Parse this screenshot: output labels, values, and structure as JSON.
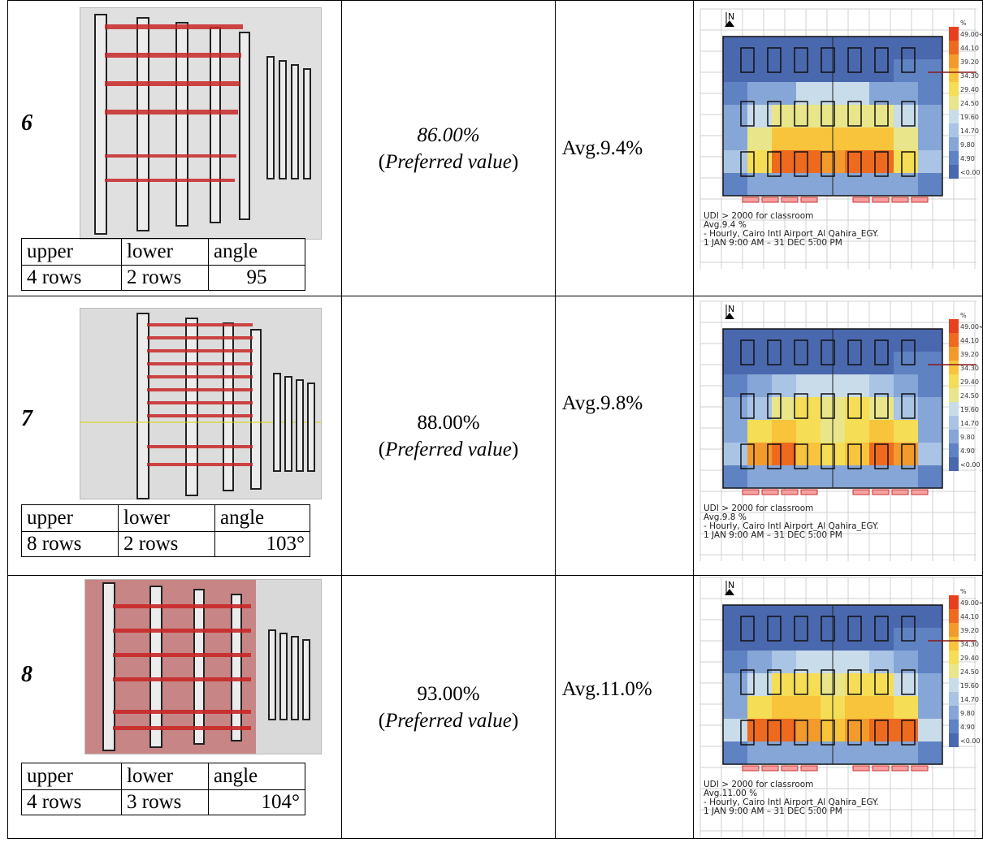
{
  "rows": [
    {
      "num": "6",
      "pct": "86.00%",
      "pct_italic": true,
      "pref": "Preferred value",
      "avg": "Avg.9.4%",
      "params": {
        "h1": "upper",
        "h2": "lower",
        "h3": "angle",
        "v1": "4 rows",
        "v2": "2 rows",
        "v3": "95"
      },
      "map": {
        "north": "N",
        "caption1": "UDI > 2000 for classroom",
        "caption2": "Avg.9.4 %",
        "caption3": " - Hourly, Cairo Intl Airport_Al Qahira_EGY.",
        "caption4": "1 JAN 9:00 AM – 31 DEC 5:00 PM"
      }
    },
    {
      "num": "7",
      "pct": "88.00%",
      "pct_italic": false,
      "pref": "Preferred value",
      "avg": "Avg.9.8%",
      "params": {
        "h1": "upper",
        "h2": "lower",
        "h3": "angle",
        "v1": "8 rows",
        "v2": "2 rows",
        "v3": "103°"
      },
      "map": {
        "north": "N",
        "caption1": "UDI > 2000 for classroom",
        "caption2": "Avg.9.8 %",
        "caption3": " - Hourly, Cairo Intl Airport_Al Qahira_EGY.",
        "caption4": "1 JAN 9:00 AM – 31 DEC 5:00 PM"
      }
    },
    {
      "num": "8",
      "pct": "93.00%",
      "pct_italic": false,
      "pref": "Preferred value",
      "avg": "Avg.11.0%",
      "params": {
        "h1": "upper",
        "h2": "lower",
        "h3": "angle",
        "v1": "4 rows",
        "v2": "3 rows",
        "v3": "104°"
      },
      "map": {
        "north": "N",
        "caption1": "UDI > 2000 for classroom",
        "caption2": "Avg.11.00 %",
        "caption3": " - Hourly, Cairo Intl Airport_Al Qahira_EGY.",
        "caption4": "1 JAN 9:00 AM – 31 DEC 5:00 PM"
      }
    }
  ],
  "legend": {
    "unit": "%",
    "labels": [
      "49.00<",
      "44.10",
      "39.20",
      "34.30",
      "29.40",
      "24.50",
      "19.60",
      "14.70",
      "9.80",
      "4.90",
      "<0.00"
    ],
    "colors": [
      "#e8401c",
      "#ee6a1f",
      "#f39a2c",
      "#f7c43c",
      "#f5dd55",
      "#e8e58a",
      "#c9dcea",
      "#a9c4e4",
      "#85a6d6",
      "#5f82c3",
      "#4a68ae"
    ]
  },
  "colors": {
    "facade_red": "#c92828",
    "render_bg": "#d8d8d8",
    "plan_blue": "#4a68ae",
    "border": "#000000"
  }
}
